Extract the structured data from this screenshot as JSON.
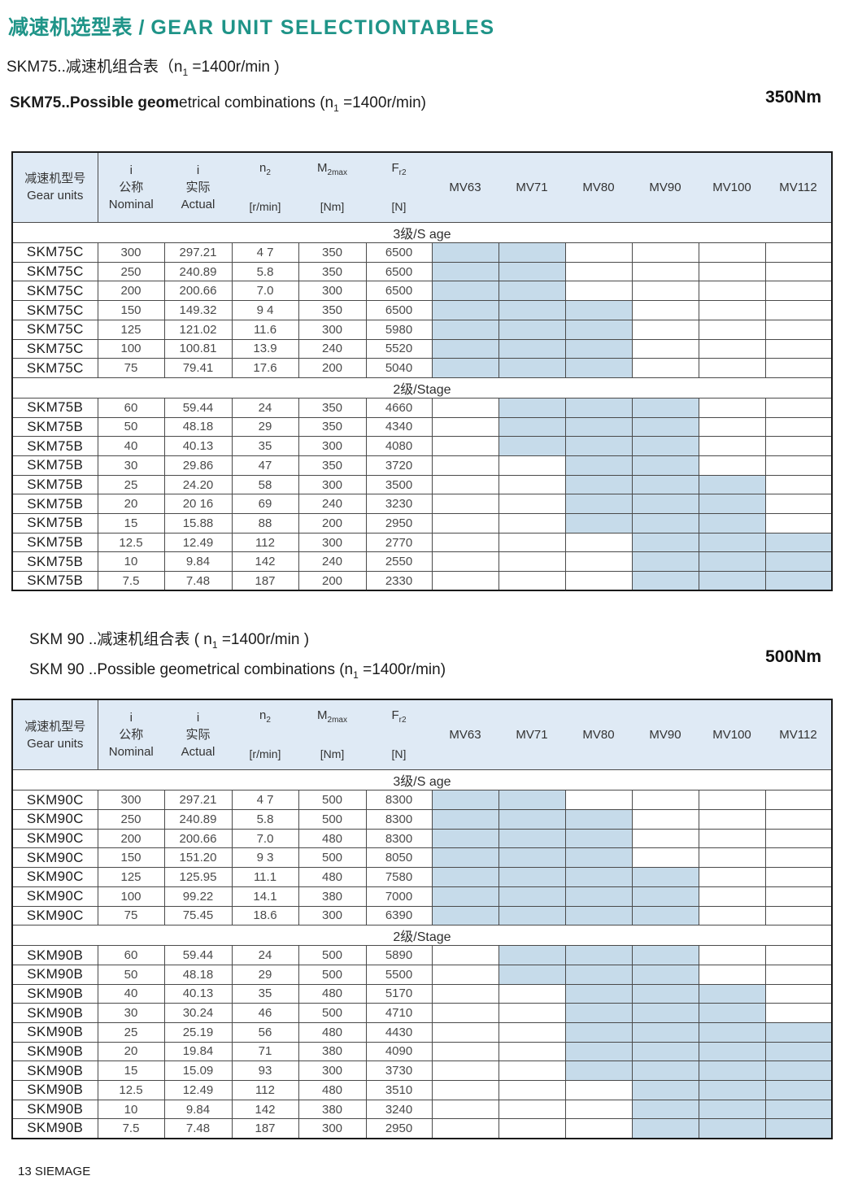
{
  "colors": {
    "accent_teal": "#1f9488",
    "table_header_bg": "#dfeaf5",
    "available_cell_bg": "#c6dbea",
    "table_border": "#4a4a4a",
    "table_outer_border": "#1a1a1a"
  },
  "header": {
    "title_zh": "减速机选型表 / ",
    "title_en": "GEAR UNIT SELECTIONTABLES"
  },
  "footer": "13 SIEMAGE",
  "sections": [
    {
      "line1": {
        "pre": "SKM75..减速机组合表（n",
        "sub": "1",
        "post": " =1400r/min )"
      },
      "line2": {
        "bold": "SKM75..Possible geom",
        "rest": "etrical combinations  (n",
        "sub": "1",
        "post": " =1400r/min)"
      },
      "torque": "350Nm",
      "table": {
        "header": {
          "col1": {
            "zh": "减速机型号",
            "en": "Gear units"
          },
          "col2": {
            "sym": "i",
            "zh": "公称",
            "en": "Nominal"
          },
          "col3": {
            "sym": "i",
            "zh": "实际",
            "en": "Actual"
          },
          "col4": {
            "sym": "n",
            "sub": "2",
            "unit": "[r/min]"
          },
          "col5": {
            "sym": "M",
            "sub": "2max",
            "unit": "[Nm]"
          },
          "col6": {
            "sym": "F",
            "sub": "r2",
            "unit": "[N]"
          },
          "mv": [
            "MV63",
            "MV71",
            "MV80",
            "MV90",
            "MV100",
            "MV112"
          ]
        },
        "groups": [
          {
            "label": "3级/S age",
            "rows": [
              {
                "model": "SKM75C",
                "nominal": "300",
                "actual": "297.21",
                "n2": "4 7",
                "m2": "350",
                "fr2": "6500",
                "mv": [
                  1,
                  1,
                  0,
                  0,
                  0,
                  0
                ]
              },
              {
                "model": "SKM75C",
                "nominal": "250",
                "actual": "240.89",
                "n2": "5.8",
                "m2": "350",
                "fr2": "6500",
                "mv": [
                  1,
                  1,
                  0,
                  0,
                  0,
                  0
                ]
              },
              {
                "model": "SKM75C",
                "nominal": "200",
                "actual": "200.66",
                "n2": "7.0",
                "m2": "300",
                "fr2": "6500",
                "mv": [
                  1,
                  1,
                  0,
                  0,
                  0,
                  0
                ]
              },
              {
                "model": "SKM75C",
                "nominal": "150",
                "actual": "149.32",
                "n2": "9 4",
                "m2": "350",
                "fr2": "6500",
                "mv": [
                  1,
                  1,
                  1,
                  0,
                  0,
                  0
                ]
              },
              {
                "model": "SKM75C",
                "nominal": "125",
                "actual": "121.02",
                "n2": "11.6",
                "m2": "300",
                "fr2": "5980",
                "mv": [
                  1,
                  1,
                  1,
                  0,
                  0,
                  0
                ]
              },
              {
                "model": "SKM75C",
                "nominal": "100",
                "actual": "100.81",
                "n2": "13.9",
                "m2": "240",
                "fr2": "5520",
                "mv": [
                  1,
                  1,
                  1,
                  0,
                  0,
                  0
                ]
              },
              {
                "model": "SKM75C",
                "nominal": "75",
                "actual": "79.41",
                "n2": "17.6",
                "m2": "200",
                "fr2": "5040",
                "mv": [
                  1,
                  1,
                  1,
                  0,
                  0,
                  0
                ]
              }
            ]
          },
          {
            "label": "2级/Stage",
            "rows": [
              {
                "model": "SKM75B",
                "nominal": "60",
                "actual": "59.44",
                "n2": "24",
                "m2": "350",
                "fr2": "4660",
                "mv": [
                  0,
                  1,
                  1,
                  1,
                  0,
                  0
                ]
              },
              {
                "model": "SKM75B",
                "nominal": "50",
                "actual": "48.18",
                "n2": "29",
                "m2": "350",
                "fr2": "4340",
                "mv": [
                  0,
                  1,
                  1,
                  1,
                  0,
                  0
                ]
              },
              {
                "model": "SKM75B",
                "nominal": "40",
                "actual": "40.13",
                "n2": "35",
                "m2": "300",
                "fr2": "4080",
                "mv": [
                  0,
                  1,
                  1,
                  1,
                  0,
                  0
                ]
              },
              {
                "model": "SKM75B",
                "nominal": "30",
                "actual": "29.86",
                "n2": "47",
                "m2": "350",
                "fr2": "3720",
                "mv": [
                  0,
                  0,
                  1,
                  1,
                  0,
                  0
                ]
              },
              {
                "model": "SKM75B",
                "nominal": "25",
                "actual": "24.20",
                "n2": "58",
                "m2": "300",
                "fr2": "3500",
                "mv": [
                  0,
                  0,
                  1,
                  1,
                  1,
                  0
                ]
              },
              {
                "model": "SKM75B",
                "nominal": "20",
                "actual": "20 16",
                "n2": "69",
                "m2": "240",
                "fr2": "3230",
                "mv": [
                  0,
                  0,
                  1,
                  1,
                  1,
                  0
                ]
              },
              {
                "model": "SKM75B",
                "nominal": "15",
                "actual": "15.88",
                "n2": "88",
                "m2": "200",
                "fr2": "2950",
                "mv": [
                  0,
                  0,
                  1,
                  1,
                  1,
                  0
                ]
              },
              {
                "model": "SKM75B",
                "nominal": "12.5",
                "actual": "12.49",
                "n2": "112",
                "m2": "300",
                "fr2": "2770",
                "mv": [
                  0,
                  0,
                  0,
                  1,
                  1,
                  1
                ]
              },
              {
                "model": "SKM75B",
                "nominal": "10",
                "actual": "9.84",
                "n2": "142",
                "m2": "240",
                "fr2": "2550",
                "mv": [
                  0,
                  0,
                  0,
                  1,
                  1,
                  1
                ]
              },
              {
                "model": "SKM75B",
                "nominal": "7.5",
                "actual": "7.48",
                "n2": "187",
                "m2": "200",
                "fr2": "2330",
                "mv": [
                  0,
                  0,
                  0,
                  1,
                  1,
                  1
                ]
              }
            ]
          }
        ]
      }
    },
    {
      "line1": {
        "pre": "SKM 90 ..减速机组合表 ( n",
        "sub": "1",
        "post": " =1400r/min )"
      },
      "line2": {
        "bold": "",
        "rest": "SKM 90 ..Possible geometrical combinations (n",
        "sub": "1",
        "post": " =1400r/min)"
      },
      "torque": "500Nm",
      "table": {
        "header": {
          "col1": {
            "zh": "减速机型号",
            "en": "Gear units"
          },
          "col2": {
            "sym": "i",
            "zh": "公称",
            "en": "Nominal"
          },
          "col3": {
            "sym": "i",
            "zh": "实际",
            "en": "Actual"
          },
          "col4": {
            "sym": "n",
            "sub": "2",
            "unit": "[r/min]"
          },
          "col5": {
            "sym": "M",
            "sub": "2max",
            "unit": "[Nm]"
          },
          "col6": {
            "sym": "F",
            "sub": "r2",
            "unit": "[N]"
          },
          "mv": [
            "MV63",
            "MV71",
            "MV80",
            "MV90",
            "MV100",
            "MV112"
          ]
        },
        "groups": [
          {
            "label": "3级/S age",
            "rows": [
              {
                "model": "SKM90C",
                "nominal": "300",
                "actual": "297.21",
                "n2": "4 7",
                "m2": "500",
                "fr2": "8300",
                "mv": [
                  1,
                  1,
                  0,
                  0,
                  0,
                  0
                ]
              },
              {
                "model": "SKM90C",
                "nominal": "250",
                "actual": "240.89",
                "n2": "5.8",
                "m2": "500",
                "fr2": "8300",
                "mv": [
                  1,
                  1,
                  1,
                  0,
                  0,
                  0
                ]
              },
              {
                "model": "SKM90C",
                "nominal": "200",
                "actual": "200.66",
                "n2": "7.0",
                "m2": "480",
                "fr2": "8300",
                "mv": [
                  1,
                  1,
                  1,
                  0,
                  0,
                  0
                ]
              },
              {
                "model": "SKM90C",
                "nominal": "150",
                "actual": "151.20",
                "n2": "9 3",
                "m2": "500",
                "fr2": "8050",
                "mv": [
                  1,
                  1,
                  1,
                  0,
                  0,
                  0
                ]
              },
              {
                "model": "SKM90C",
                "nominal": "125",
                "actual": "125.95",
                "n2": "11.1",
                "m2": "480",
                "fr2": "7580",
                "mv": [
                  1,
                  1,
                  1,
                  1,
                  0,
                  0
                ]
              },
              {
                "model": "SKM90C",
                "nominal": "100",
                "actual": "99.22",
                "n2": "14.1",
                "m2": "380",
                "fr2": "7000",
                "mv": [
                  1,
                  1,
                  1,
                  1,
                  0,
                  0
                ]
              },
              {
                "model": "SKM90C",
                "nominal": "75",
                "actual": "75.45",
                "n2": "18.6",
                "m2": "300",
                "fr2": "6390",
                "mv": [
                  1,
                  1,
                  1,
                  1,
                  0,
                  0
                ]
              }
            ]
          },
          {
            "label": "2级/Stage",
            "rows": [
              {
                "model": "SKM90B",
                "nominal": "60",
                "actual": "59.44",
                "n2": "24",
                "m2": "500",
                "fr2": "5890",
                "mv": [
                  0,
                  1,
                  1,
                  1,
                  0,
                  0
                ]
              },
              {
                "model": "SKM90B",
                "nominal": "50",
                "actual": "48.18",
                "n2": "29",
                "m2": "500",
                "fr2": "5500",
                "mv": [
                  0,
                  1,
                  1,
                  1,
                  0,
                  0
                ]
              },
              {
                "model": "SKM90B",
                "nominal": "40",
                "actual": "40.13",
                "n2": "35",
                "m2": "480",
                "fr2": "5170",
                "mv": [
                  0,
                  0,
                  1,
                  1,
                  1,
                  0
                ]
              },
              {
                "model": "SKM90B",
                "nominal": "30",
                "actual": "30.24",
                "n2": "46",
                "m2": "500",
                "fr2": "4710",
                "mv": [
                  0,
                  0,
                  1,
                  1,
                  1,
                  0
                ]
              },
              {
                "model": "SKM90B",
                "nominal": "25",
                "actual": "25.19",
                "n2": "56",
                "m2": "480",
                "fr2": "4430",
                "mv": [
                  0,
                  0,
                  1,
                  1,
                  1,
                  1
                ]
              },
              {
                "model": "SKM90B",
                "nominal": "20",
                "actual": "19.84",
                "n2": "71",
                "m2": "380",
                "fr2": "4090",
                "mv": [
                  0,
                  0,
                  1,
                  1,
                  1,
                  1
                ]
              },
              {
                "model": "SKM90B",
                "nominal": "15",
                "actual": "15.09",
                "n2": "93",
                "m2": "300",
                "fr2": "3730",
                "mv": [
                  0,
                  0,
                  1,
                  1,
                  1,
                  1
                ]
              },
              {
                "model": "SKM90B",
                "nominal": "12.5",
                "actual": "12.49",
                "n2": "112",
                "m2": "480",
                "fr2": "3510",
                "mv": [
                  0,
                  0,
                  0,
                  1,
                  1,
                  1
                ]
              },
              {
                "model": "SKM90B",
                "nominal": "10",
                "actual": "9.84",
                "n2": "142",
                "m2": "380",
                "fr2": "3240",
                "mv": [
                  0,
                  0,
                  0,
                  1,
                  1,
                  1
                ]
              },
              {
                "model": "SKM90B",
                "nominal": "7.5",
                "actual": "7.48",
                "n2": "187",
                "m2": "300",
                "fr2": "2950",
                "mv": [
                  0,
                  0,
                  0,
                  1,
                  1,
                  1
                ]
              }
            ]
          }
        ]
      }
    }
  ]
}
